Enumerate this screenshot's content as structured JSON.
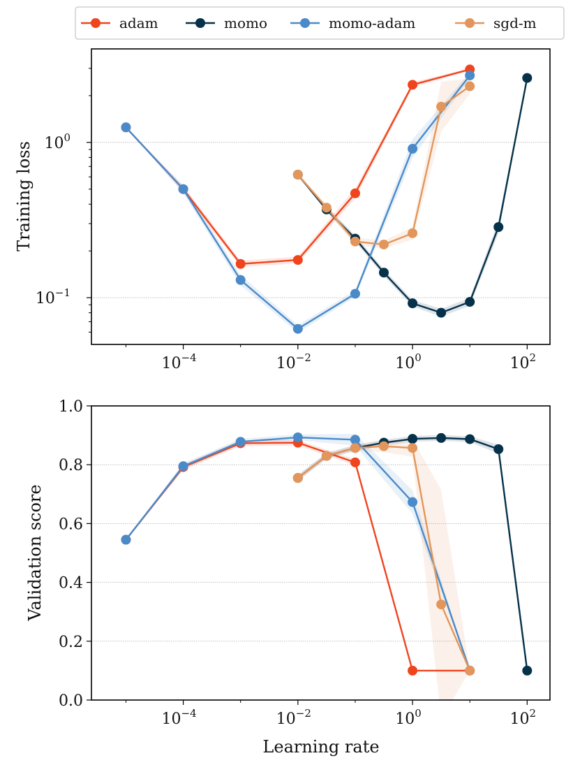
{
  "legend": {
    "entries": [
      {
        "name": "adam",
        "color": "#f0441d"
      },
      {
        "name": "momo",
        "color": "#05314a"
      },
      {
        "name": "momo-adam",
        "color": "#4a8ac9"
      },
      {
        "name": "sgd-m",
        "color": "#e3965b"
      }
    ]
  },
  "chart_data": [
    {
      "type": "line",
      "title": "",
      "xlabel": "",
      "ylabel": "Training loss",
      "xscale": "log",
      "yscale": "log",
      "xlim": [
        2.5e-06,
        250
      ],
      "ylim": [
        0.05,
        4.0
      ],
      "xticks": [
        {
          "value": 0.0001,
          "base": "10",
          "exp": "−4"
        },
        {
          "value": 0.01,
          "base": "10",
          "exp": "−2"
        },
        {
          "value": 1,
          "base": "10",
          "exp": "0"
        },
        {
          "value": 100,
          "base": "10",
          "exp": "2"
        }
      ],
      "yticks": [
        {
          "value": 0.1,
          "base": "10",
          "exp": "−1"
        },
        {
          "value": 1,
          "base": "10",
          "exp": "0"
        }
      ],
      "series": [
        {
          "name": "adam",
          "color": "#f0441d",
          "x": [
            1e-05,
            0.0001,
            0.001,
            0.01,
            0.1,
            1,
            10
          ],
          "y": [
            1.25,
            0.5,
            0.165,
            0.175,
            0.47,
            2.35,
            2.95
          ],
          "band": [
            0.0,
            0.05,
            0.05,
            0.05,
            0.08,
            0.04,
            0.02
          ]
        },
        {
          "name": "momo",
          "color": "#05314a",
          "x": [
            0.01,
            0.0316,
            0.1,
            0.316,
            1,
            3.16,
            10,
            31.6,
            100
          ],
          "y": [
            0.62,
            0.37,
            0.24,
            0.145,
            0.092,
            0.08,
            0.094,
            0.285,
            2.6
          ],
          "band": [
            0.02,
            0.04,
            0.05,
            0.05,
            0.05,
            0.06,
            0.06,
            0.1,
            0.02
          ]
        },
        {
          "name": "momo-adam",
          "color": "#4a8ac9",
          "x": [
            1e-05,
            0.0001,
            0.001,
            0.01,
            0.1,
            1,
            10
          ],
          "y": [
            1.25,
            0.5,
            0.13,
            0.063,
            0.106,
            0.91,
            2.7
          ],
          "band": [
            0.0,
            0.06,
            0.08,
            0.06,
            0.05,
            0.15,
            0.05
          ]
        },
        {
          "name": "sgd-m",
          "color": "#e3965b",
          "x": [
            0.01,
            0.0316,
            0.1,
            0.316,
            1,
            3.16,
            10
          ],
          "y": [
            0.62,
            0.38,
            0.23,
            0.22,
            0.26,
            1.7,
            2.3
          ],
          "band": [
            0.02,
            0.05,
            0.06,
            0.06,
            0.1,
            0.45,
            0.12
          ]
        }
      ]
    },
    {
      "type": "line",
      "title": "",
      "xlabel": "Learning rate",
      "ylabel": "Validation score",
      "xscale": "log",
      "yscale": "linear",
      "xlim": [
        2.5e-06,
        250
      ],
      "ylim": [
        0.0,
        1.0
      ],
      "xticks": [
        {
          "value": 0.0001,
          "base": "10",
          "exp": "−4"
        },
        {
          "value": 0.01,
          "base": "10",
          "exp": "−2"
        },
        {
          "value": 1,
          "base": "10",
          "exp": "0"
        },
        {
          "value": 100,
          "base": "10",
          "exp": "2"
        }
      ],
      "yticks": [
        {
          "value": 0.0,
          "label": "0.0"
        },
        {
          "value": 0.2,
          "label": "0.2"
        },
        {
          "value": 0.4,
          "label": "0.4"
        },
        {
          "value": 0.6,
          "label": "0.6"
        },
        {
          "value": 0.8,
          "label": "0.8"
        },
        {
          "value": 1.0,
          "label": "1.0"
        }
      ],
      "series": [
        {
          "name": "adam",
          "color": "#f0441d",
          "x": [
            1e-05,
            0.0001,
            0.001,
            0.01,
            0.1,
            1,
            10
          ],
          "y": [
            0.545,
            0.792,
            0.873,
            0.875,
            0.808,
            0.1,
            0.1
          ],
          "band": [
            0.0,
            0.01,
            0.01,
            0.01,
            0.01,
            0.0,
            0.0
          ]
        },
        {
          "name": "momo",
          "color": "#05314a",
          "x": [
            0.01,
            0.0316,
            0.1,
            0.316,
            1,
            3.16,
            10,
            31.6,
            100
          ],
          "y": [
            0.755,
            0.83,
            0.857,
            0.875,
            0.888,
            0.891,
            0.887,
            0.853,
            0.1
          ],
          "band": [
            0.01,
            0.01,
            0.01,
            0.01,
            0.01,
            0.01,
            0.01,
            0.015,
            0.0
          ]
        },
        {
          "name": "momo-adam",
          "color": "#4a8ac9",
          "x": [
            1e-05,
            0.0001,
            0.001,
            0.01,
            0.1,
            1,
            10
          ],
          "y": [
            0.545,
            0.795,
            0.878,
            0.893,
            0.885,
            0.673,
            0.1
          ],
          "band": [
            0.0,
            0.01,
            0.01,
            0.01,
            0.02,
            0.04,
            0.0
          ]
        },
        {
          "name": "sgd-m",
          "color": "#e3965b",
          "x": [
            0.01,
            0.0316,
            0.1,
            0.316,
            1,
            3.16,
            10
          ],
          "y": [
            0.755,
            0.83,
            0.857,
            0.863,
            0.857,
            0.325,
            0.1
          ],
          "band": [
            0.01,
            0.01,
            0.01,
            0.02,
            0.03,
            0.39,
            0.0
          ]
        }
      ]
    }
  ]
}
